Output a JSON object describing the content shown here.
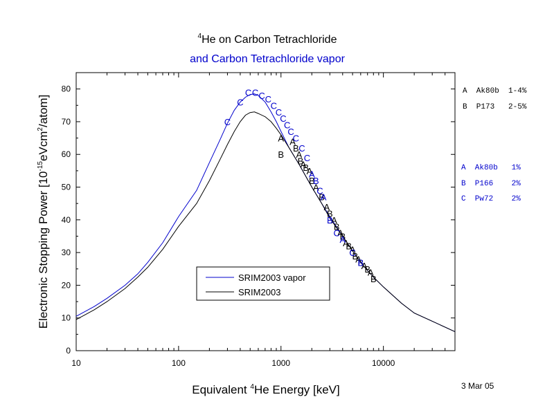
{
  "chart_data": {
    "type": "line",
    "title_line1_sup": "4",
    "title_line1": "He on Carbon Tetrachloride",
    "title_line2": "and Carbon Tetrachloride vapor",
    "xlabel_pre": "Equivalent ",
    "xlabel_sup": "4",
    "xlabel_post": "He Energy [keV]",
    "ylabel_a": "Electronic Stopping Power [10",
    "ylabel_sup1": "-15",
    "ylabel_b": "eVcm",
    "ylabel_sup2": "2",
    "ylabel_c": "/atom]",
    "x_scale": "log",
    "xlim": [
      10,
      50000
    ],
    "ylim": [
      0,
      85
    ],
    "x_ticks": [
      10,
      100,
      1000,
      10000
    ],
    "x_tick_labels": [
      "10",
      "100",
      "1000",
      "10000"
    ],
    "y_ticks": [
      0,
      10,
      20,
      30,
      40,
      50,
      60,
      70,
      80
    ],
    "y_tick_labels": [
      "0",
      "10",
      "20",
      "30",
      "40",
      "50",
      "60",
      "70",
      "80"
    ],
    "date": "3 Mar 05",
    "colors": {
      "vapor": "#0000cc",
      "solid": "#000000",
      "blue_text": "#0000cc"
    },
    "legend": {
      "placement": "lower-center",
      "entries": [
        {
          "label": "SRIM2003 vapor",
          "color": "#0000cc"
        },
        {
          "label": "SRIM2003",
          "color": "#000000"
        }
      ]
    },
    "refs_black": [
      {
        "text": "A  Ak80b  1-4%"
      },
      {
        "text": "B  P173   2-5%"
      }
    ],
    "refs_blue": [
      {
        "text": "A  Ak80b   1%"
      },
      {
        "text": "B  P166    2%"
      },
      {
        "text": "C  Pw72    2%"
      }
    ],
    "series": [
      {
        "name": "SRIM2003 vapor",
        "color": "#0000cc",
        "x": [
          10,
          15,
          20,
          30,
          40,
          50,
          70,
          100,
          150,
          200,
          250,
          300,
          350,
          400,
          450,
          500,
          550,
          600,
          700,
          800,
          900,
          1000,
          1200,
          1500,
          2000,
          2500,
          3000,
          4000,
          5000,
          6000,
          7000,
          8000,
          10000,
          15000,
          20000,
          30000,
          50000
        ],
        "y": [
          10.5,
          13.5,
          16.0,
          20.0,
          23.5,
          27.0,
          33.0,
          41.0,
          49.0,
          57.5,
          64.0,
          69.5,
          73.5,
          76.0,
          77.5,
          78.3,
          78.5,
          78.0,
          76.0,
          73.0,
          70.0,
          67.0,
          62.0,
          57.0,
          50.0,
          45.0,
          41.0,
          35.0,
          30.5,
          27.0,
          24.5,
          22.5,
          19.5,
          14.5,
          11.5,
          9.0,
          5.8
        ]
      },
      {
        "name": "SRIM2003",
        "color": "#000000",
        "x": [
          10,
          15,
          20,
          30,
          40,
          50,
          70,
          100,
          150,
          200,
          250,
          300,
          350,
          400,
          450,
          500,
          550,
          600,
          700,
          800,
          900,
          1000,
          1200,
          1500,
          2000,
          2500,
          3000,
          4000,
          5000,
          6000,
          7000,
          8000,
          10000,
          15000,
          20000,
          30000,
          50000
        ],
        "y": [
          9.5,
          12.5,
          15.0,
          19.0,
          22.5,
          25.5,
          31.0,
          38.0,
          45.0,
          52.0,
          58.0,
          63.0,
          67.0,
          70.0,
          72.0,
          72.8,
          73.0,
          72.5,
          71.5,
          70.0,
          68.0,
          66.0,
          62.0,
          57.0,
          50.0,
          45.0,
          40.5,
          35.0,
          30.5,
          27.0,
          24.5,
          22.5,
          19.5,
          14.5,
          11.5,
          9.0,
          5.8
        ]
      }
    ],
    "markers_black": [
      {
        "label": "A",
        "x": 1000,
        "y": 65
      },
      {
        "label": "B",
        "x": 1000,
        "y": 60
      },
      {
        "label": "A",
        "x": 1300,
        "y": 64
      },
      {
        "label": "B",
        "x": 1400,
        "y": 62
      },
      {
        "label": "A",
        "x": 1500,
        "y": 60
      },
      {
        "label": "B",
        "x": 1550,
        "y": 58
      },
      {
        "label": "A",
        "x": 1650,
        "y": 57
      },
      {
        "label": "B",
        "x": 1750,
        "y": 56
      },
      {
        "label": "A",
        "x": 1900,
        "y": 55
      },
      {
        "label": "B",
        "x": 2000,
        "y": 52
      },
      {
        "label": "A",
        "x": 2200,
        "y": 50
      },
      {
        "label": "B",
        "x": 2500,
        "y": 47
      },
      {
        "label": "A",
        "x": 2800,
        "y": 44
      },
      {
        "label": "B",
        "x": 3000,
        "y": 42
      },
      {
        "label": "A",
        "x": 3300,
        "y": 40
      },
      {
        "label": "B",
        "x": 3500,
        "y": 38
      },
      {
        "label": "A",
        "x": 3800,
        "y": 36
      },
      {
        "label": "B",
        "x": 4000,
        "y": 35
      },
      {
        "label": "A",
        "x": 4300,
        "y": 33
      },
      {
        "label": "B",
        "x": 4600,
        "y": 32
      },
      {
        "label": "A",
        "x": 5000,
        "y": 31
      },
      {
        "label": "B",
        "x": 5300,
        "y": 29
      },
      {
        "label": "A",
        "x": 5700,
        "y": 28
      },
      {
        "label": "B",
        "x": 6000,
        "y": 27
      },
      {
        "label": "A",
        "x": 6500,
        "y": 26
      },
      {
        "label": "B",
        "x": 7000,
        "y": 25
      },
      {
        "label": "A",
        "x": 7500,
        "y": 24
      },
      {
        "label": "B",
        "x": 8000,
        "y": 22
      }
    ],
    "markers_blue": [
      {
        "label": "C",
        "x": 300,
        "y": 70
      },
      {
        "label": "C",
        "x": 400,
        "y": 76
      },
      {
        "label": "C",
        "x": 480,
        "y": 79
      },
      {
        "label": "C",
        "x": 560,
        "y": 79
      },
      {
        "label": "C",
        "x": 650,
        "y": 78
      },
      {
        "label": "C",
        "x": 750,
        "y": 77
      },
      {
        "label": "C",
        "x": 850,
        "y": 75
      },
      {
        "label": "C",
        "x": 950,
        "y": 73
      },
      {
        "label": "C",
        "x": 1050,
        "y": 71
      },
      {
        "label": "C",
        "x": 1150,
        "y": 69
      },
      {
        "label": "C",
        "x": 1250,
        "y": 67
      },
      {
        "label": "C",
        "x": 1400,
        "y": 65
      },
      {
        "label": "C",
        "x": 1600,
        "y": 62
      },
      {
        "label": "C",
        "x": 1800,
        "y": 59
      },
      {
        "label": "A",
        "x": 2000,
        "y": 54
      },
      {
        "label": "B",
        "x": 2200,
        "y": 52
      },
      {
        "label": "C",
        "x": 2400,
        "y": 49
      },
      {
        "label": "A",
        "x": 2600,
        "y": 47
      },
      {
        "label": "B",
        "x": 3000,
        "y": 40
      },
      {
        "label": "C",
        "x": 3500,
        "y": 36
      },
      {
        "label": "A",
        "x": 4000,
        "y": 34
      },
      {
        "label": "C",
        "x": 5000,
        "y": 30
      },
      {
        "label": "B",
        "x": 6000,
        "y": 27
      }
    ]
  }
}
